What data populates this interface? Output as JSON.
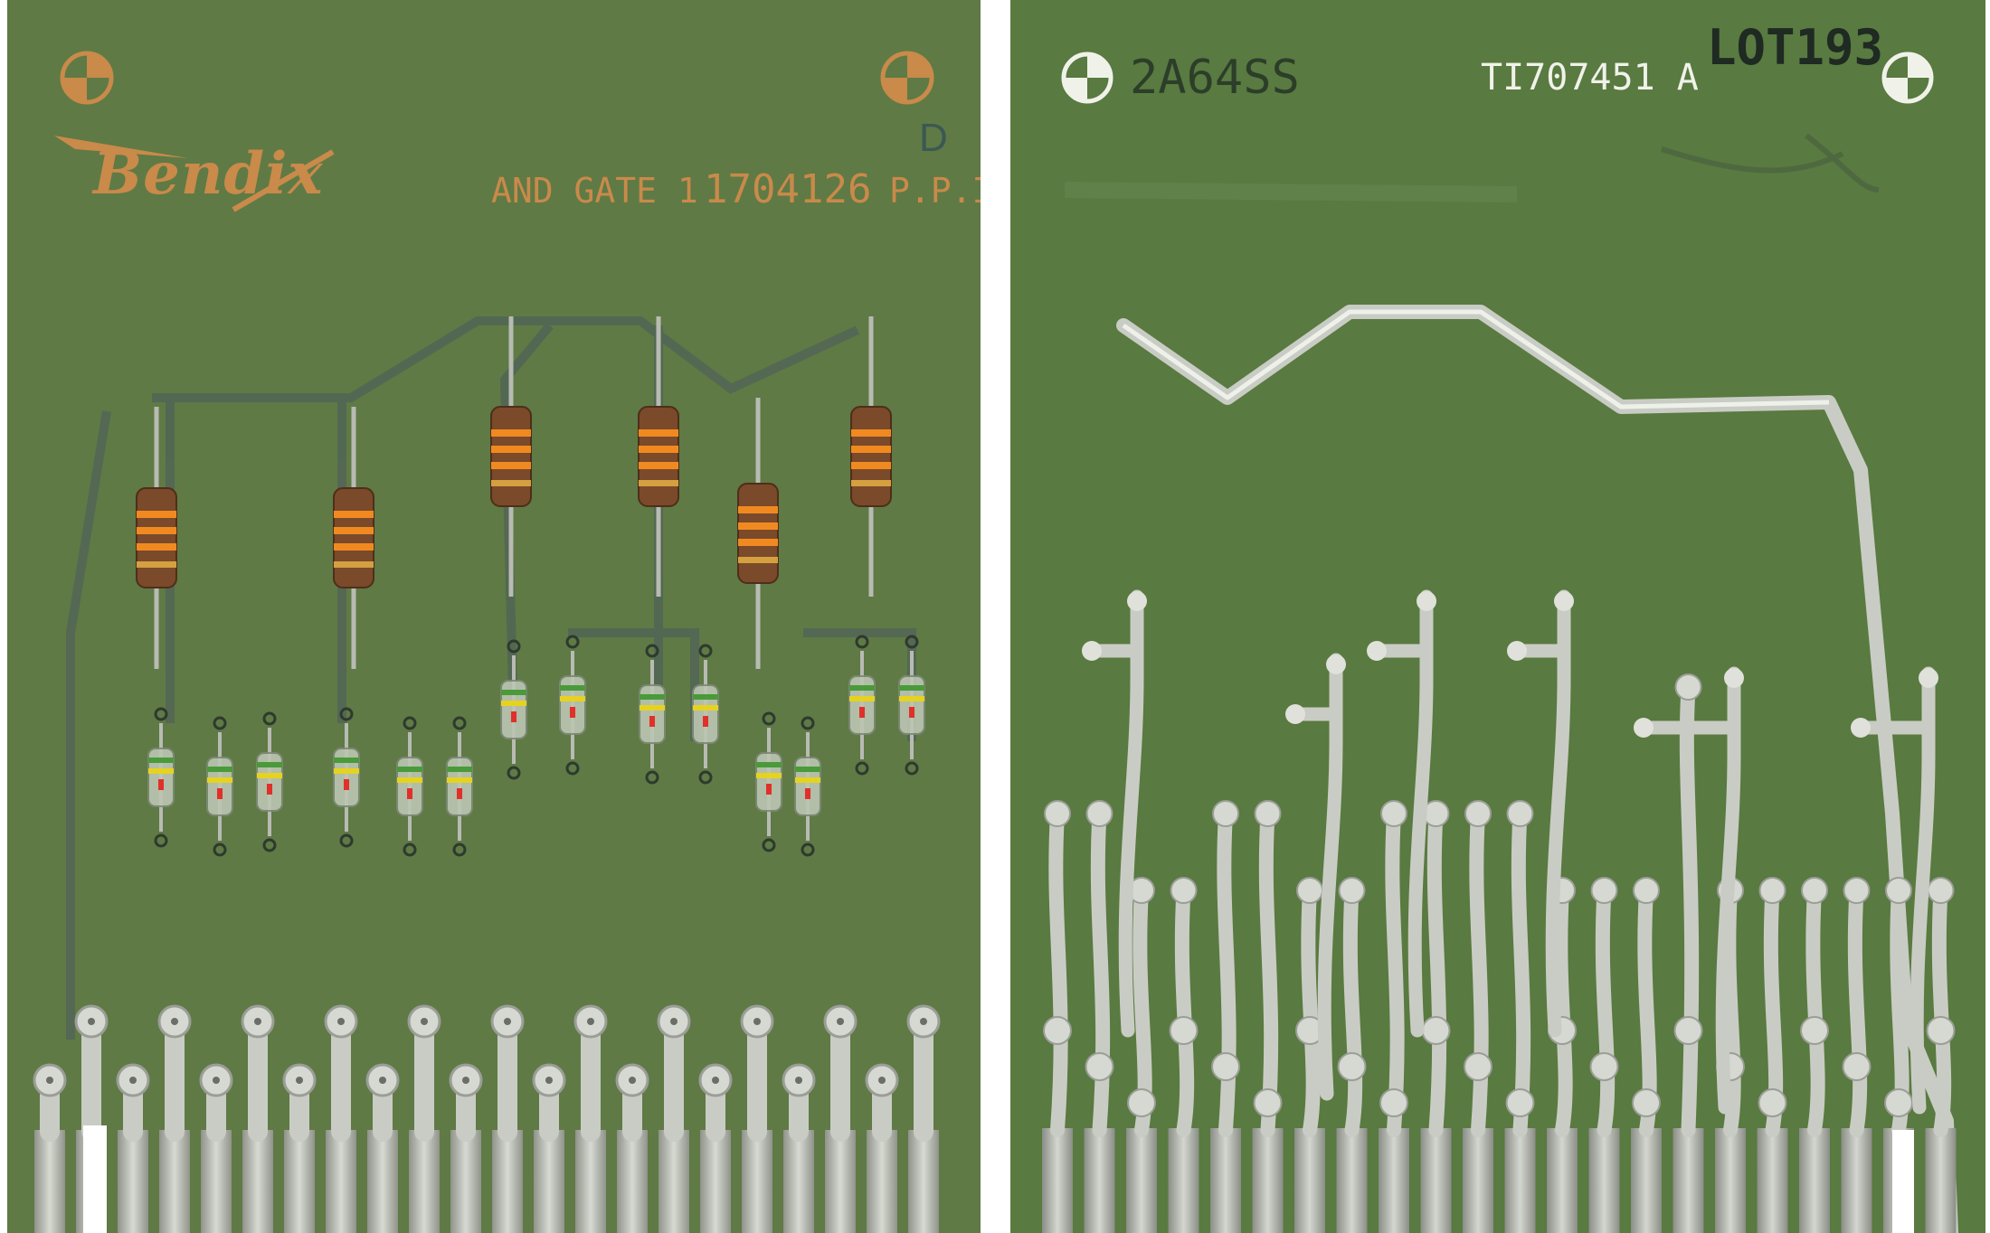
{
  "front": {
    "logo": "Bendix",
    "part_label": "AND GATE 1",
    "part_number": "1704126",
    "ppi": "P.P.I.",
    "revision": "D"
  },
  "back": {
    "stamp": "2A64SS",
    "board_id": "TI707451 A",
    "lot": "LOT193"
  },
  "colors": {
    "board": "#5f7a45",
    "silkscreen": "#c98a4a",
    "solder": "#c9ccc4",
    "resistor_body": "#7a4a2a",
    "resistor_band": "#f08a20"
  }
}
